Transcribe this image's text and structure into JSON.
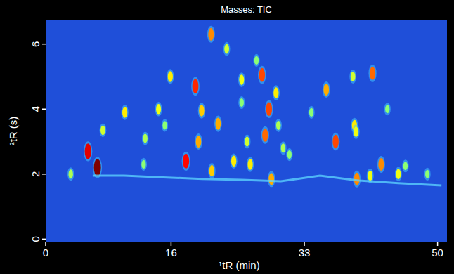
{
  "chart_data": {
    "type": "scatter",
    "title": "Masses: TIC",
    "x_label": "¹tR (min)",
    "y_label": "²tR (s)",
    "xlim": [
      0,
      51.2
    ],
    "ylim": [
      -0.1,
      6.75
    ],
    "xticks": [
      0,
      16,
      33,
      50
    ],
    "yticks": [
      0,
      2,
      4,
      6
    ],
    "grid": false,
    "color_range": [
      0,
      100
    ],
    "series": [
      {
        "type": "scatter",
        "marker": "ellipse",
        "x": [
          5.4,
          6.6,
          3.2,
          7.3,
          10.1,
          12.7,
          14.4,
          15.9,
          15.2,
          12.5,
          17.9,
          19.1,
          19.9,
          19.5,
          21.2,
          21.1,
          22.0,
          23.1,
          24.0,
          25.0,
          25.7,
          26.1,
          27.6,
          28.0,
          28.5,
          28.8,
          29.4,
          29.7,
          25.0,
          26.9,
          30.3,
          31.1,
          33.9,
          35.8,
          37.0,
          39.2,
          39.4,
          39.6,
          39.7,
          41.4,
          41.7,
          42.8,
          43.6,
          45.0,
          45.9,
          48.7
        ],
        "y": [
          2.7,
          2.2,
          2.0,
          3.35,
          3.9,
          3.1,
          4.0,
          5.0,
          3.5,
          2.3,
          2.4,
          4.7,
          3.95,
          3.0,
          2.1,
          6.3,
          3.55,
          5.85,
          2.4,
          4.9,
          3.0,
          2.3,
          5.05,
          3.2,
          4.0,
          1.85,
          4.5,
          3.5,
          4.2,
          5.5,
          2.8,
          2.6,
          3.9,
          4.6,
          3.0,
          5.0,
          3.5,
          3.3,
          1.85,
          1.95,
          5.1,
          2.3,
          4.0,
          2.0,
          2.25,
          2.0
        ],
        "intensity": [
          85,
          100,
          30,
          35,
          45,
          30,
          40,
          45,
          25,
          25,
          80,
          75,
          50,
          55,
          50,
          60,
          55,
          35,
          45,
          40,
          35,
          45,
          70,
          65,
          70,
          55,
          45,
          30,
          25,
          25,
          30,
          25,
          25,
          55,
          70,
          35,
          45,
          40,
          60,
          40,
          65,
          60,
          25,
          40,
          25,
          25
        ]
      },
      {
        "type": "line",
        "color": "#5fd8ff",
        "x": [
          6,
          10,
          15,
          20,
          25,
          30,
          35,
          40,
          45,
          50.5
        ],
        "y": [
          1.95,
          1.95,
          1.9,
          1.85,
          1.82,
          1.78,
          1.95,
          1.8,
          1.72,
          1.65
        ]
      }
    ]
  }
}
